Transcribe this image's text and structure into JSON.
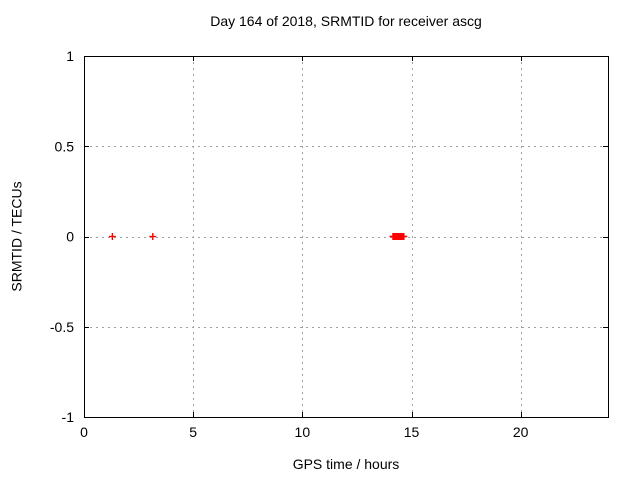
{
  "window": {
    "background": "#ffffff"
  },
  "chart_data": {
    "type": "scatter",
    "title": "Day 164 of 2018, SRMTID for receiver ascg",
    "xlabel": "GPS time / hours",
    "ylabel": "SRMTID / TECUs",
    "xlim": [
      0,
      24
    ],
    "ylim": [
      -1,
      1
    ],
    "xticks": [
      0,
      5,
      10,
      15,
      20
    ],
    "yticks": [
      -1,
      -0.5,
      0,
      0.5,
      1
    ],
    "grid": true,
    "grid_style": "dashed",
    "legend": "none",
    "colors": {
      "marker": "#ff0000",
      "grid": "#a0a0a0",
      "border": "#000000"
    },
    "series": [
      {
        "name": "SRMTID",
        "marker": "plus",
        "color": "#ff0000",
        "points": [
          {
            "x": 1.3,
            "y": 0
          },
          {
            "x": 3.15,
            "y": 0
          }
        ],
        "cluster": {
          "description": "dense overlapping points rendered as a solid red block",
          "x_start": 14.15,
          "x_end": 14.65,
          "step": 0.05,
          "y": 0
        }
      }
    ]
  }
}
